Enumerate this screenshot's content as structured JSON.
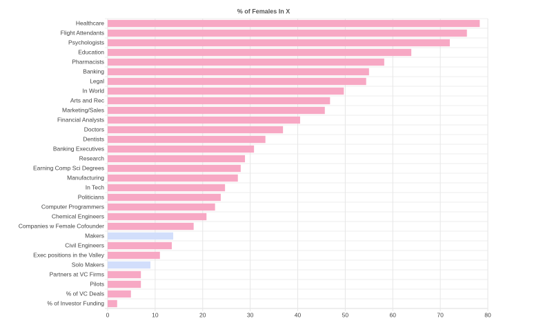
{
  "chart_data": {
    "type": "hbar",
    "title": "% of Females In X",
    "categories": [
      "Healthcare",
      "Flight Attendants",
      "Psychologists",
      "Education",
      "Pharmacists",
      "Banking",
      "Legal",
      "In World",
      "Arts and Rec",
      "Marketing/Sales",
      "Financial Analysts",
      "Doctors",
      "Dentists",
      "Banking Executives",
      "Research",
      "Earning Comp Sci Degrees",
      "Manufacturing",
      "In Tech",
      "Politicians",
      "Computer Programmers",
      "Chemical Engineers",
      "Companies w Female Cofounder",
      "Makers",
      "Civil Engineers",
      "Exec positions in the Valley",
      "Solo Makers",
      "Partners at VC Firms",
      "Pilots",
      "% of VC Deals",
      "% of Investor Funding"
    ],
    "values": [
      78.3,
      75.6,
      72.0,
      63.9,
      58.2,
      55.0,
      54.4,
      49.7,
      46.8,
      45.7,
      40.5,
      36.9,
      33.2,
      30.8,
      28.9,
      28.0,
      27.4,
      24.7,
      23.8,
      22.6,
      20.8,
      18.1,
      13.8,
      13.5,
      11.0,
      9.0,
      7.0,
      7.0,
      4.9,
      2.0
    ],
    "colors": [
      "#f7a8c4",
      "#f7a8c4",
      "#f7a8c4",
      "#f7a8c4",
      "#f7a8c4",
      "#f7a8c4",
      "#f7a8c4",
      "#f7a8c4",
      "#f7a8c4",
      "#f7a8c4",
      "#f7a8c4",
      "#f7a8c4",
      "#f7a8c4",
      "#f7a8c4",
      "#f7a8c4",
      "#f7a8c4",
      "#f7a8c4",
      "#f7a8c4",
      "#f7a8c4",
      "#f7a8c4",
      "#f7a8c4",
      "#f7a8c4",
      "#d2defb",
      "#f7a8c4",
      "#f7a8c4",
      "#d2defb",
      "#f7a8c4",
      "#f7a8c4",
      "#f7a8c4",
      "#f7a8c4"
    ],
    "xlim": [
      0,
      80
    ],
    "xticks": [
      0,
      10,
      20,
      30,
      40,
      50,
      60,
      70,
      80
    ],
    "grid": true
  }
}
